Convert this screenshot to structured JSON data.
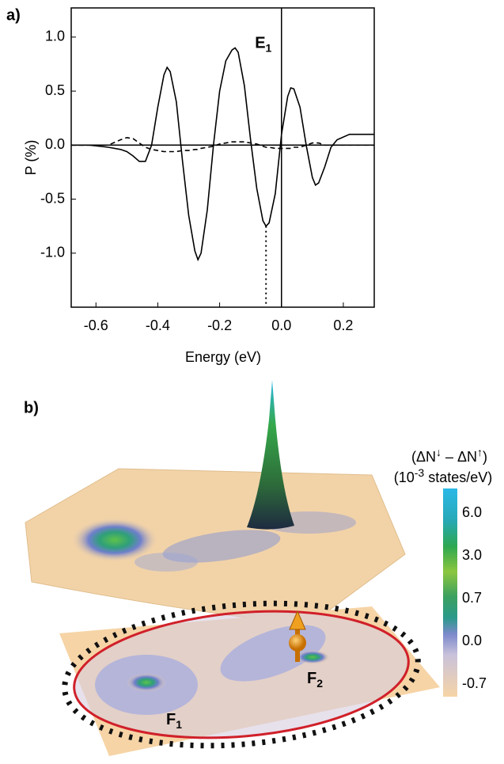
{
  "chart_data": {
    "type": "line",
    "panel_label": "a)",
    "xlabel": "Energy (eV)",
    "ylabel": "P (%)",
    "xlim": [
      -0.68,
      0.3
    ],
    "ylim": [
      -1.5,
      1.27
    ],
    "xticks": [
      -0.6,
      -0.4,
      -0.2,
      {
        "value": 0,
        "label": "0.0"
      },
      0.2
    ],
    "yticks": [
      {
        "value": 1,
        "label": "1.0"
      },
      0.5,
      {
        "value": 0,
        "label": "0.0"
      },
      -0.5,
      {
        "value": -1,
        "label": "-1.0"
      }
    ],
    "x": [
      -0.68,
      -0.62,
      -0.56,
      -0.52,
      -0.5,
      -0.48,
      -0.46,
      -0.44,
      -0.42,
      -0.4,
      -0.38,
      -0.37,
      -0.36,
      -0.34,
      -0.32,
      -0.3,
      -0.28,
      -0.27,
      -0.26,
      -0.24,
      -0.22,
      -0.2,
      -0.18,
      -0.16,
      -0.15,
      -0.14,
      -0.12,
      -0.1,
      -0.08,
      -0.06,
      -0.05,
      -0.04,
      -0.02,
      0,
      0.02,
      0.03,
      0.04,
      0.06,
      0.08,
      0.1,
      0.11,
      0.12,
      0.14,
      0.16,
      0.18,
      0.22,
      0.26,
      0.3
    ],
    "series": [
      {
        "color": "#000000",
        "dash": false,
        "values": [
          0,
          0,
          -0.02,
          -0.04,
          -0.06,
          -0.1,
          -0.15,
          -0.15,
          0,
          0.35,
          0.65,
          0.72,
          0.68,
          0.4,
          -0.15,
          -0.65,
          -0.98,
          -1.06,
          -1.0,
          -0.6,
          0,
          0.5,
          0.78,
          0.88,
          0.9,
          0.86,
          0.55,
          0.05,
          -0.4,
          -0.7,
          -0.75,
          -0.72,
          -0.45,
          0.1,
          0.45,
          0.53,
          0.52,
          0.35,
          0,
          -0.3,
          -0.37,
          -0.35,
          -0.2,
          -0.02,
          0.05,
          0.1,
          0.1,
          0.1
        ]
      },
      {
        "color": "#000000",
        "dash": true,
        "values": [
          0,
          0,
          0,
          0.05,
          0.07,
          0.06,
          0.02,
          -0.02,
          -0.04,
          -0.05,
          -0.06,
          -0.06,
          -0.06,
          -0.06,
          -0.05,
          -0.05,
          -0.04,
          -0.04,
          -0.03,
          -0.02,
          -0.01,
          0.01,
          0.02,
          0.03,
          0.03,
          0.03,
          0.03,
          0.02,
          0.01,
          -0.01,
          -0.02,
          -0.02,
          -0.03,
          -0.03,
          -0.03,
          -0.03,
          -0.02,
          -0.02,
          0,
          0.02,
          0.02,
          0.02,
          0,
          0,
          0,
          0,
          0,
          0
        ]
      }
    ],
    "e1": {
      "label": "E",
      "subscript": "1",
      "energy": -0.05,
      "p": -0.75
    }
  },
  "panel_b": {
    "panel_label": "b)",
    "colorbar": {
      "title_line1": {
        "a": "(ΔN",
        "sup1": "↓",
        "b": " – ΔN",
        "sup2": "↑",
        "c": ")"
      },
      "title_line2": {
        "a": "(10",
        "sup": "-3",
        "b": " states/eV)"
      },
      "labels": [
        "6.0",
        "3.0",
        "0.7",
        "0.0",
        "-0.7"
      ]
    },
    "f1": {
      "label": "F",
      "subscript": "1"
    },
    "f2": {
      "label": "F",
      "subscript": "2"
    }
  }
}
